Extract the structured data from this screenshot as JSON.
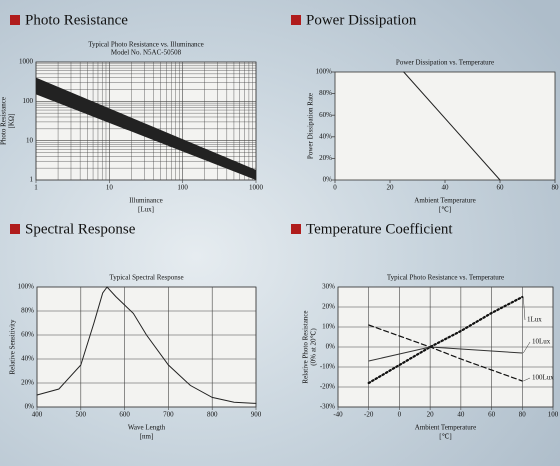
{
  "chart_data": [
    {
      "type": "band",
      "heading": "Photo Resistance",
      "title": "Typical Photo Resistance vs. Illuminance",
      "subtitle": "Model No. N5AC-50508",
      "xlabel": [
        "Illuminance",
        "[Lux]"
      ],
      "ylabel": [
        "Photo Resistance",
        "[KΩ]"
      ],
      "log_scale": true,
      "grid": true,
      "x": [
        1,
        1000
      ],
      "series": [
        {
          "values": [
            400,
            1.8
          ],
          "color": "#222"
        },
        {
          "values": [
            150,
            1
          ],
          "color": "#222"
        }
      ],
      "xlim": [
        1,
        1000
      ],
      "xticks": [
        1,
        10,
        100,
        1000
      ],
      "ylim": [
        1,
        1000
      ],
      "yticks": [
        1,
        10,
        100,
        1000
      ]
    },
    {
      "type": "line",
      "heading": "Power Dissipation",
      "title": "Power Dissipation vs. Temperature",
      "xlabel": [
        "Ambient Temperature",
        "[℃]"
      ],
      "ylabel": [
        "Power Dissipation Rate"
      ],
      "grid": false,
      "x": [
        25,
        60
      ],
      "series": [
        {
          "values": [
            100,
            0
          ],
          "color": "#222",
          "dash": "solid"
        }
      ],
      "xlim": [
        0,
        80
      ],
      "xticks": [
        0,
        20,
        40,
        60,
        80
      ],
      "ylim": [
        0,
        100
      ],
      "yticks": [
        {
          "value": 0,
          "label": "0%"
        },
        {
          "value": 20,
          "label": "20%"
        },
        {
          "value": 40,
          "label": "40%"
        },
        {
          "value": 60,
          "label": "60%"
        },
        {
          "value": 80,
          "label": "80%"
        },
        {
          "value": 100,
          "label": "100%"
        }
      ]
    },
    {
      "type": "line",
      "heading": "Spectral Response",
      "title": "Typical Spectral Response",
      "xlabel": [
        "Wave Length",
        "[nm]"
      ],
      "ylabel": [
        "Relative Sensitivity"
      ],
      "grid": true,
      "x": [
        400,
        450,
        500,
        530,
        550,
        560,
        580,
        600,
        620,
        650,
        700,
        750,
        800,
        850,
        900
      ],
      "series": [
        {
          "values": [
            10,
            15,
            35,
            70,
            95,
            100,
            92,
            85,
            78,
            60,
            35,
            18,
            8,
            4,
            3
          ],
          "color": "#222",
          "dash": "solid"
        }
      ],
      "xlim": [
        400,
        900
      ],
      "xticks": [
        400,
        500,
        600,
        700,
        800,
        900
      ],
      "ylim": [
        0,
        100
      ],
      "yticks": [
        {
          "value": 0,
          "label": "0%"
        },
        {
          "value": 20,
          "label": "20%"
        },
        {
          "value": 40,
          "label": "40%"
        },
        {
          "value": 60,
          "label": "60%"
        },
        {
          "value": 80,
          "label": "80%"
        },
        {
          "value": 100,
          "label": "100%"
        }
      ]
    },
    {
      "type": "line",
      "heading": "Temperature Coefficient",
      "title": "Typical Photo Resistance vs. Temperature",
      "xlabel": [
        "Ambient Temperature",
        "[℃]"
      ],
      "ylabel": [
        "Relative Photo Resistance",
        "(0% at 20℃)"
      ],
      "grid": true,
      "x": [
        -20,
        0,
        20,
        40,
        60,
        80
      ],
      "series": [
        {
          "name": "1Lux",
          "values": [
            -18,
            -9,
            0,
            8,
            17,
            25
          ],
          "color": "#111",
          "dash": "dotted"
        },
        {
          "name": "10Lux",
          "values": [
            -7,
            -3.5,
            0,
            -1,
            -2,
            -3
          ],
          "color": "#333",
          "dash": "solid"
        },
        {
          "name": "100Lux",
          "values": [
            11,
            5.5,
            0,
            -6,
            -11.5,
            -17
          ],
          "color": "#111",
          "dash": "dashed"
        }
      ],
      "xlim": [
        -40,
        100
      ],
      "xticks": [
        -40,
        -20,
        0,
        20,
        40,
        60,
        80,
        100
      ],
      "ylim": [
        -30,
        30
      ],
      "yticks": [
        {
          "value": -30,
          "label": "-30%"
        },
        {
          "value": -20,
          "label": "-20%"
        },
        {
          "value": -10,
          "label": "-10%"
        },
        {
          "value": 0,
          "label": "0%"
        },
        {
          "value": 10,
          "label": "10%"
        },
        {
          "value": 20,
          "label": "20%"
        },
        {
          "value": 30,
          "label": "30%"
        }
      ]
    }
  ]
}
